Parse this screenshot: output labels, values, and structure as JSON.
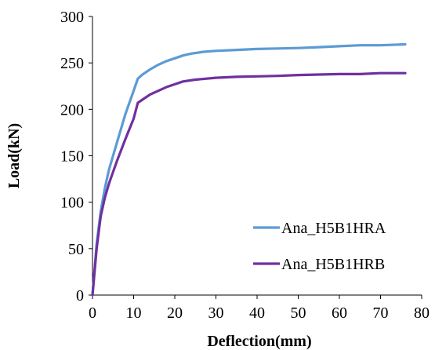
{
  "chart_data": {
    "type": "line",
    "title": "",
    "xlabel": "Deflection(mm)",
    "ylabel": "Load(kN)",
    "xlim": [
      0,
      80
    ],
    "ylim": [
      0,
      300
    ],
    "xticks": [
      0,
      10,
      20,
      30,
      40,
      50,
      60,
      70,
      80
    ],
    "yticks": [
      0,
      50,
      100,
      150,
      200,
      250,
      300
    ],
    "grid": false,
    "legend_position": "bottom-right",
    "series": [
      {
        "name": "Ana_H5B1HRA",
        "color": "#5b9bd5",
        "points": [
          [
            0,
            0
          ],
          [
            1,
            55
          ],
          [
            2,
            90
          ],
          [
            3,
            115
          ],
          [
            4,
            135
          ],
          [
            6,
            165
          ],
          [
            8,
            195
          ],
          [
            10,
            220
          ],
          [
            11,
            233
          ],
          [
            12,
            237
          ],
          [
            14,
            243
          ],
          [
            16,
            248
          ],
          [
            18,
            252
          ],
          [
            20,
            255
          ],
          [
            22,
            258
          ],
          [
            24,
            260
          ],
          [
            27,
            262
          ],
          [
            30,
            263
          ],
          [
            35,
            264
          ],
          [
            40,
            265
          ],
          [
            45,
            265.5
          ],
          [
            50,
            266
          ],
          [
            55,
            267
          ],
          [
            60,
            268
          ],
          [
            65,
            269
          ],
          [
            70,
            269
          ],
          [
            76,
            270
          ]
        ]
      },
      {
        "name": "Ana_H5B1HRB",
        "color": "#7030a0",
        "points": [
          [
            0,
            0
          ],
          [
            1,
            50
          ],
          [
            2,
            85
          ],
          [
            3,
            105
          ],
          [
            4,
            120
          ],
          [
            6,
            145
          ],
          [
            8,
            168
          ],
          [
            10,
            190
          ],
          [
            11,
            207
          ],
          [
            12,
            210
          ],
          [
            14,
            216
          ],
          [
            16,
            220
          ],
          [
            18,
            224
          ],
          [
            20,
            227
          ],
          [
            22,
            230
          ],
          [
            25,
            232
          ],
          [
            30,
            234
          ],
          [
            35,
            235
          ],
          [
            40,
            235.5
          ],
          [
            45,
            236
          ],
          [
            50,
            237
          ],
          [
            55,
            237.5
          ],
          [
            60,
            238
          ],
          [
            65,
            238
          ],
          [
            70,
            239
          ],
          [
            76,
            239
          ]
        ]
      }
    ]
  }
}
